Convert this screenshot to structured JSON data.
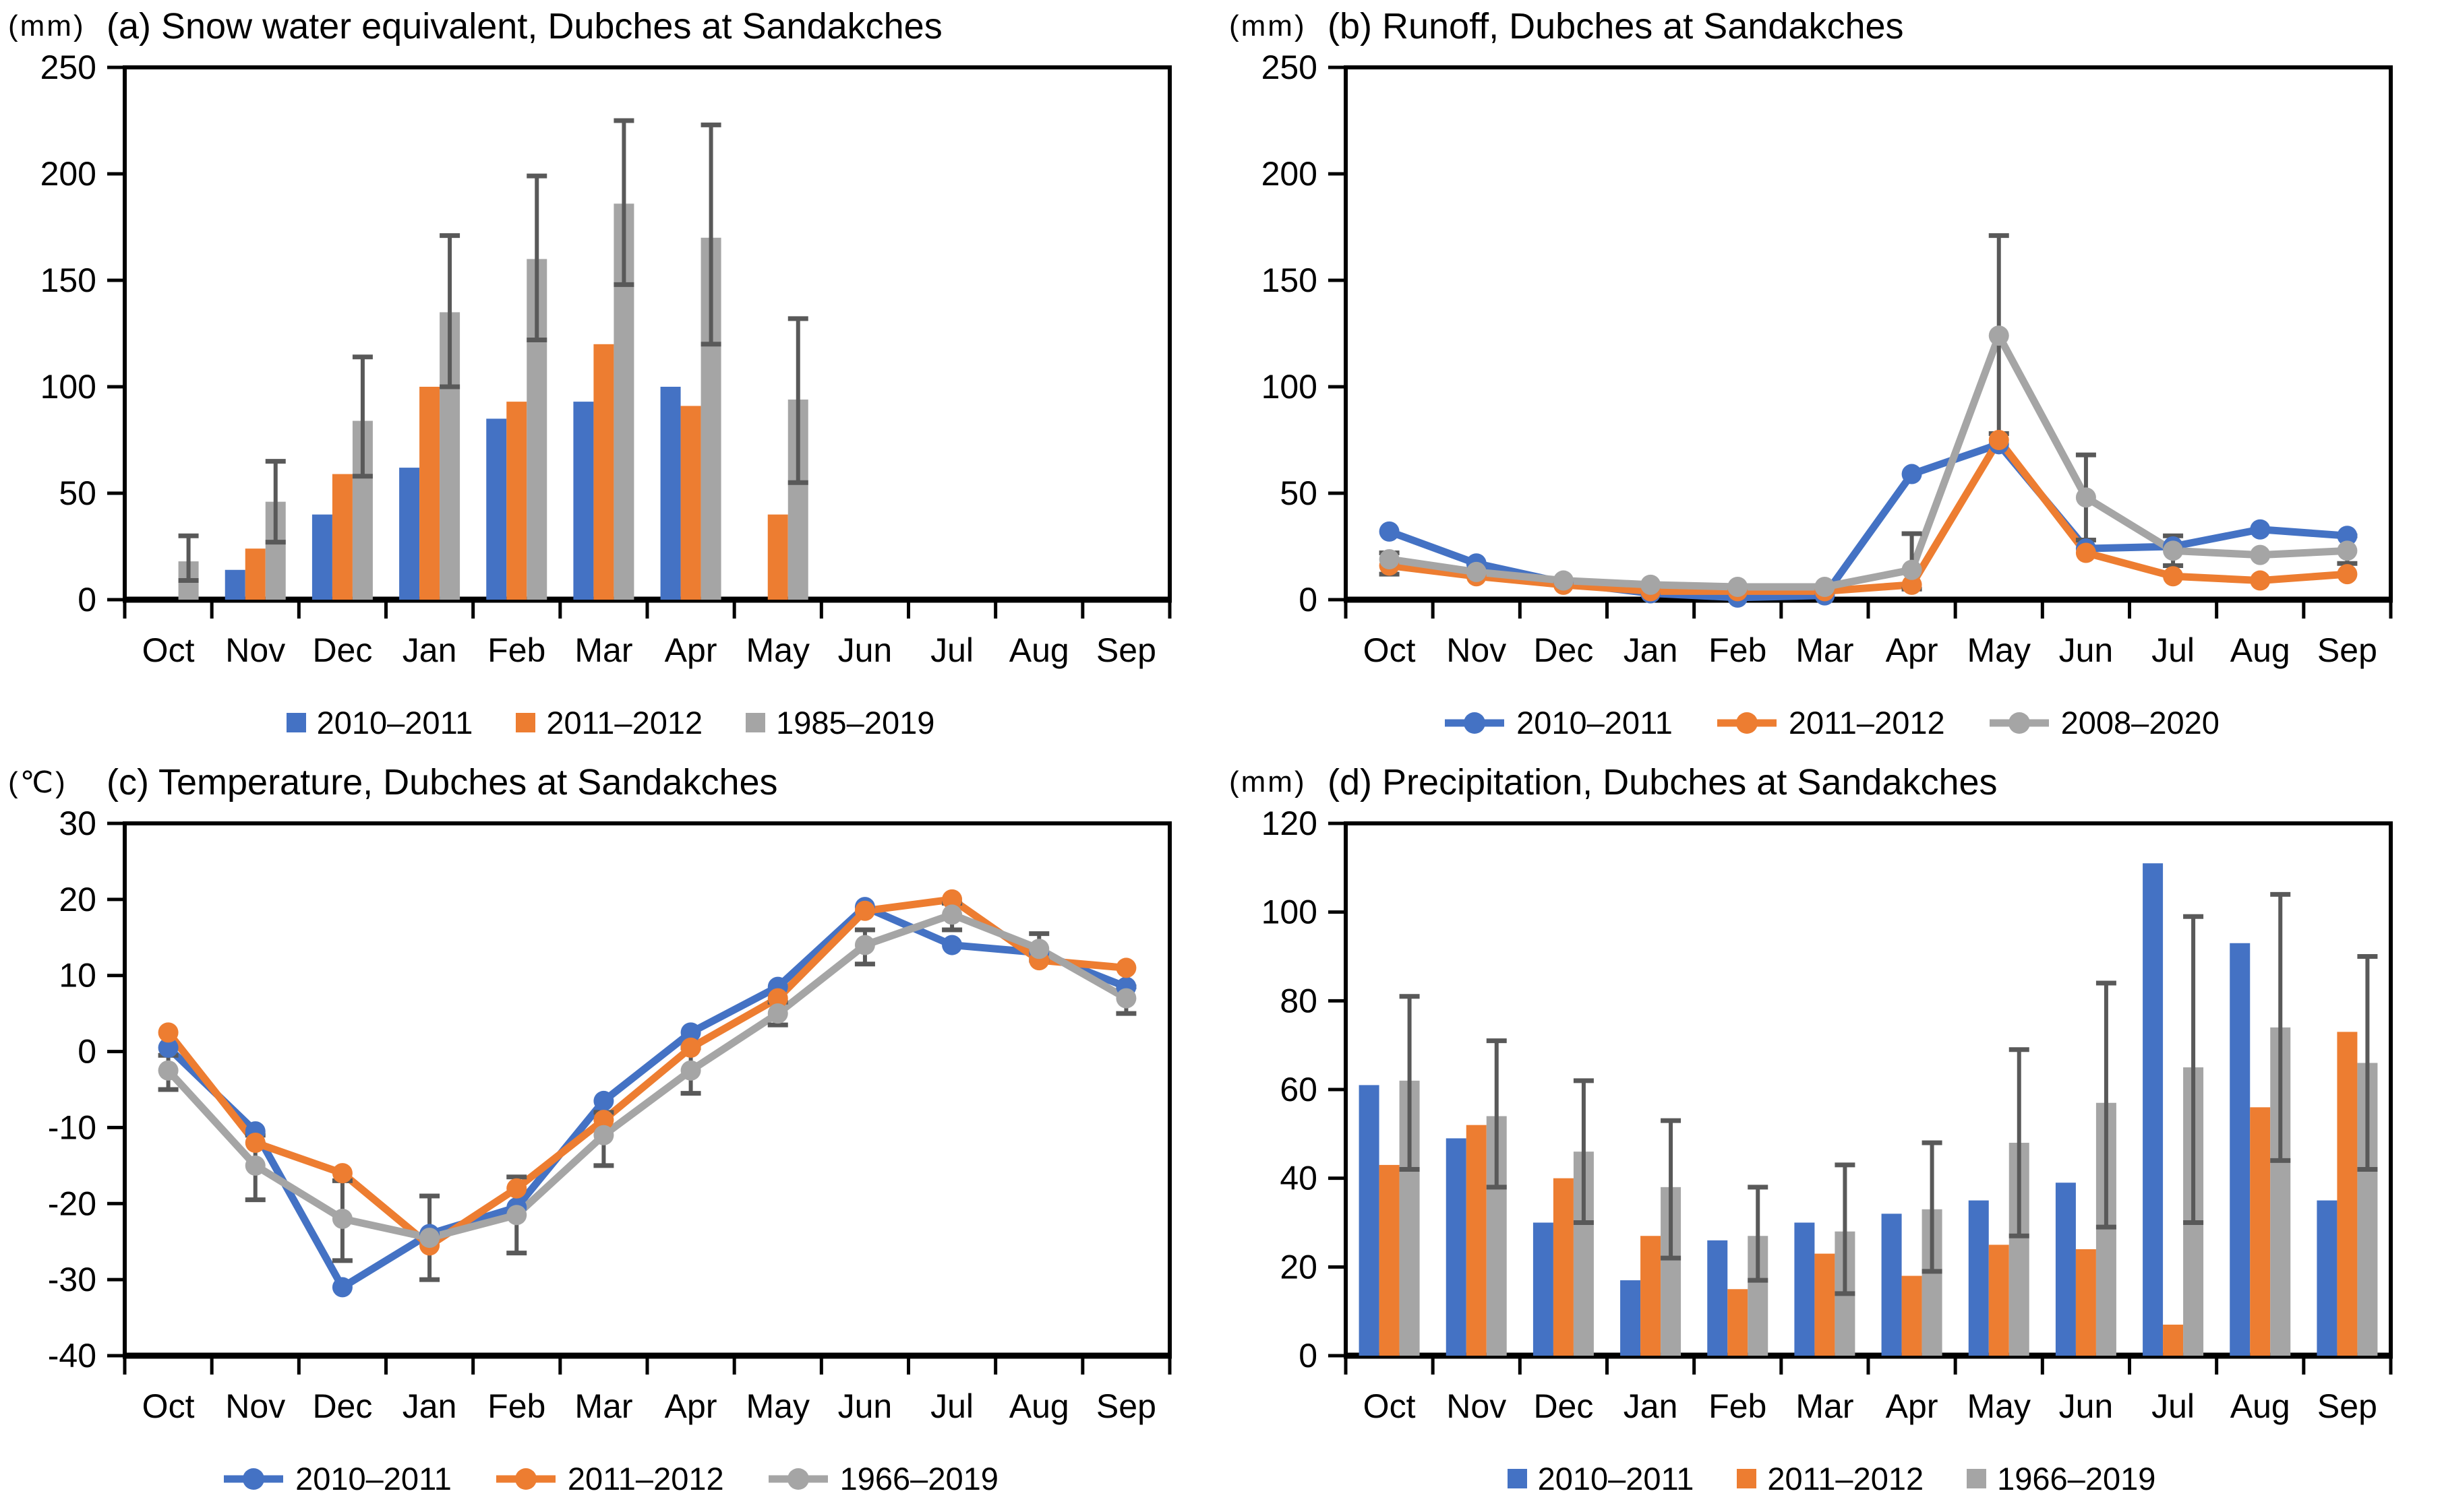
{
  "figure": {
    "background": "#ffffff"
  },
  "colors": {
    "series_blue": "#4472C4",
    "series_orange": "#ED7D31",
    "series_gray": "#A5A5A5",
    "error_bar": "#595959",
    "axis": "#000000",
    "text": "#000000"
  },
  "months": [
    "Oct",
    "Nov",
    "Dec",
    "Jan",
    "Feb",
    "Mar",
    "Apr",
    "May",
    "Jun",
    "Jul",
    "Aug",
    "Sep"
  ],
  "chart_data": [
    {
      "id": "a",
      "type": "bar",
      "title": "(a) Snow water equivalent, Dubches at Sandakches",
      "unit": "(mm)",
      "ylim": [
        0,
        250
      ],
      "yticks": [
        0,
        50,
        100,
        150,
        200,
        250
      ],
      "grid": false,
      "legend_position": "bottom",
      "legend_marker": "square",
      "categories": [
        "Oct",
        "Nov",
        "Dec",
        "Jan",
        "Feb",
        "Mar",
        "Apr",
        "May",
        "Jun",
        "Jul",
        "Aug",
        "Sep"
      ],
      "series": [
        {
          "name": "2010–2011",
          "color_key": "series_blue",
          "values": [
            0,
            14,
            40,
            62,
            85,
            93,
            100,
            0,
            0,
            0,
            0,
            0
          ]
        },
        {
          "name": "2011–2012",
          "color_key": "series_orange",
          "values": [
            0,
            24,
            59,
            100,
            93,
            120,
            91,
            40,
            0,
            0,
            0,
            0
          ]
        },
        {
          "name": "1985–2019",
          "color_key": "series_gray",
          "values": [
            18,
            46,
            84,
            135,
            160,
            186,
            170,
            94,
            0,
            0,
            0,
            0
          ],
          "error": [
            [
              9,
              30
            ],
            [
              27,
              65
            ],
            [
              58,
              114
            ],
            [
              100,
              171
            ],
            [
              122,
              199
            ],
            [
              148,
              225
            ],
            [
              120,
              223
            ],
            [
              55,
              132
            ],
            null,
            null,
            null,
            null
          ]
        }
      ]
    },
    {
      "id": "b",
      "type": "line",
      "title": "(b) Runoff, Dubches at Sandakches",
      "unit": "(mm)",
      "ylim": [
        0,
        250
      ],
      "yticks": [
        0,
        50,
        100,
        150,
        200,
        250
      ],
      "grid": false,
      "legend_position": "bottom",
      "legend_marker": "line-circle",
      "categories": [
        "Oct",
        "Nov",
        "Dec",
        "Jan",
        "Feb",
        "Mar",
        "Apr",
        "May",
        "Jun",
        "Jul",
        "Aug",
        "Sep"
      ],
      "series": [
        {
          "name": "2010–2011",
          "color_key": "series_blue",
          "values": [
            32,
            17,
            8,
            3,
            1,
            2,
            59,
            73,
            24,
            25,
            33,
            30
          ]
        },
        {
          "name": "2011–2012",
          "color_key": "series_orange",
          "values": [
            16,
            11,
            7,
            4,
            4,
            4,
            7,
            75,
            22,
            11,
            9,
            12
          ]
        },
        {
          "name": "2008–2020",
          "color_key": "series_gray",
          "values": [
            19,
            13,
            9,
            7,
            6,
            6,
            14,
            124,
            48,
            23,
            21,
            23
          ],
          "error": [
            [
              12,
              22
            ],
            null,
            null,
            null,
            null,
            null,
            [
              5,
              31
            ],
            [
              78,
              171
            ],
            [
              28,
              68
            ],
            [
              16,
              30
            ],
            null,
            [
              17,
              30
            ]
          ]
        }
      ]
    },
    {
      "id": "c",
      "type": "line",
      "title": "(c) Temperature, Dubches at Sandakches",
      "unit": "(℃)",
      "ylim": [
        -40,
        30
      ],
      "yticks": [
        -40,
        -30,
        -20,
        -10,
        0,
        10,
        20,
        30
      ],
      "grid": false,
      "legend_position": "bottom",
      "legend_marker": "line-circle",
      "categories": [
        "Oct",
        "Nov",
        "Dec",
        "Jan",
        "Feb",
        "Mar",
        "Apr",
        "May",
        "Jun",
        "Jul",
        "Aug",
        "Sep"
      ],
      "series": [
        {
          "name": "2010–2011",
          "color_key": "series_blue",
          "values": [
            0.5,
            -10.5,
            -31,
            -24,
            -20.5,
            -6.5,
            2.5,
            8.5,
            19,
            14,
            13,
            8.5
          ]
        },
        {
          "name": "2011–2012",
          "color_key": "series_orange",
          "values": [
            2.5,
            -12,
            -16,
            -25.5,
            -18,
            -9,
            0.5,
            7,
            18.5,
            20,
            12,
            11
          ]
        },
        {
          "name": "1966–2019",
          "color_key": "series_gray",
          "values": [
            -2.5,
            -15,
            -22,
            -24.5,
            -21.5,
            -11,
            -2.5,
            5,
            14,
            18,
            13.5,
            7
          ],
          "error": [
            [
              -5,
              -0.5
            ],
            [
              -19.5,
              -11
            ],
            [
              -27.5,
              -17
            ],
            [
              -30,
              -19
            ],
            [
              -26.5,
              -16.5
            ],
            [
              -15,
              -8
            ],
            [
              -5.5,
              0.5
            ],
            [
              3.5,
              6.5
            ],
            [
              11.5,
              16
            ],
            [
              16,
              19.5
            ],
            [
              12,
              15.5
            ],
            [
              5,
              8.5
            ]
          ]
        }
      ]
    },
    {
      "id": "d",
      "type": "bar",
      "title": "(d) Precipitation, Dubches at Sandakches",
      "unit": "(mm)",
      "ylim": [
        0,
        120
      ],
      "yticks": [
        0,
        20,
        40,
        60,
        80,
        100,
        120
      ],
      "grid": false,
      "legend_position": "bottom",
      "legend_marker": "square",
      "categories": [
        "Oct",
        "Nov",
        "Dec",
        "Jan",
        "Feb",
        "Mar",
        "Apr",
        "May",
        "Jun",
        "Jul",
        "Aug",
        "Sep"
      ],
      "series": [
        {
          "name": "2010–2011",
          "color_key": "series_blue",
          "values": [
            61,
            49,
            30,
            17,
            26,
            30,
            32,
            35,
            39,
            111,
            93,
            35
          ]
        },
        {
          "name": "2011–2012",
          "color_key": "series_orange",
          "values": [
            43,
            52,
            40,
            27,
            15,
            23,
            18,
            25,
            24,
            7,
            56,
            73
          ]
        },
        {
          "name": "1966–2019",
          "color_key": "series_gray",
          "values": [
            62,
            54,
            46,
            38,
            27,
            28,
            33,
            48,
            57,
            65,
            74,
            66
          ],
          "error": [
            [
              42,
              81
            ],
            [
              38,
              71
            ],
            [
              30,
              62
            ],
            [
              22,
              53
            ],
            [
              17,
              38
            ],
            [
              14,
              43
            ],
            [
              19,
              48
            ],
            [
              27,
              69
            ],
            [
              29,
              84
            ],
            [
              30,
              99
            ],
            [
              44,
              104
            ],
            [
              42,
              90
            ]
          ]
        }
      ]
    }
  ]
}
